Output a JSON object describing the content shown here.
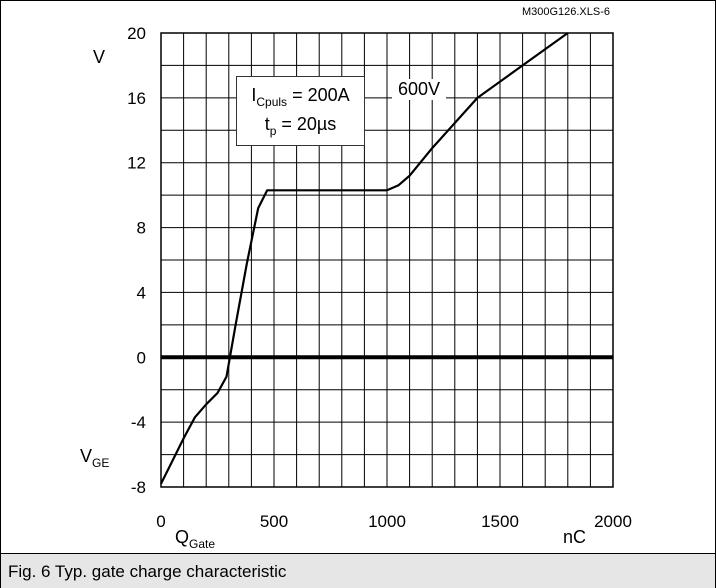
{
  "chart_data": {
    "type": "line",
    "x": [
      0,
      50,
      100,
      150,
      200,
      250,
      290,
      330,
      380,
      430,
      470,
      600,
      800,
      1000,
      1050,
      1100,
      1200,
      1400,
      1600,
      1800
    ],
    "series": [
      {
        "name": "600V",
        "values": [
          -7.8,
          -6.4,
          -5.0,
          -3.7,
          -2.9,
          -2.2,
          -1.2,
          2.0,
          5.8,
          9.2,
          10.3,
          10.3,
          10.3,
          10.3,
          10.6,
          11.2,
          12.9,
          16.0,
          18.0,
          20.0
        ]
      }
    ],
    "xlim": [
      0,
      2000
    ],
    "ylim": [
      -8,
      20
    ],
    "x_ticks": [
      "0",
      "500",
      "1000",
      "1500",
      "2000"
    ],
    "y_ticks": [
      "20",
      "16",
      "12",
      "8",
      "4",
      "0",
      "-4",
      "-8"
    ],
    "x_tick_values": [
      0,
      500,
      1000,
      1500,
      2000
    ],
    "y_tick_values": [
      20,
      16,
      12,
      8,
      4,
      0,
      -4,
      -8
    ],
    "xlabel_main": "Q",
    "xlabel_sub": "Gate",
    "xunit": "nC",
    "ylabel_main": "V",
    "ylabel_sub": "GE",
    "yunit": "V",
    "annotation_line1_main": "I",
    "annotation_line1_sub": "Cpuls",
    "annotation_line1_rest": " = 200A",
    "annotation_line2_main": "t",
    "annotation_line2_sub": "p",
    "annotation_line2_rest": " = 20µs",
    "grid": true,
    "colors": {
      "line": "#000000",
      "grid": "#000000",
      "zero_line": "#000000"
    }
  },
  "caption": "Fig. 6 Typ. gate charge characteristic",
  "file_ref": "M300G126.XLS-6"
}
